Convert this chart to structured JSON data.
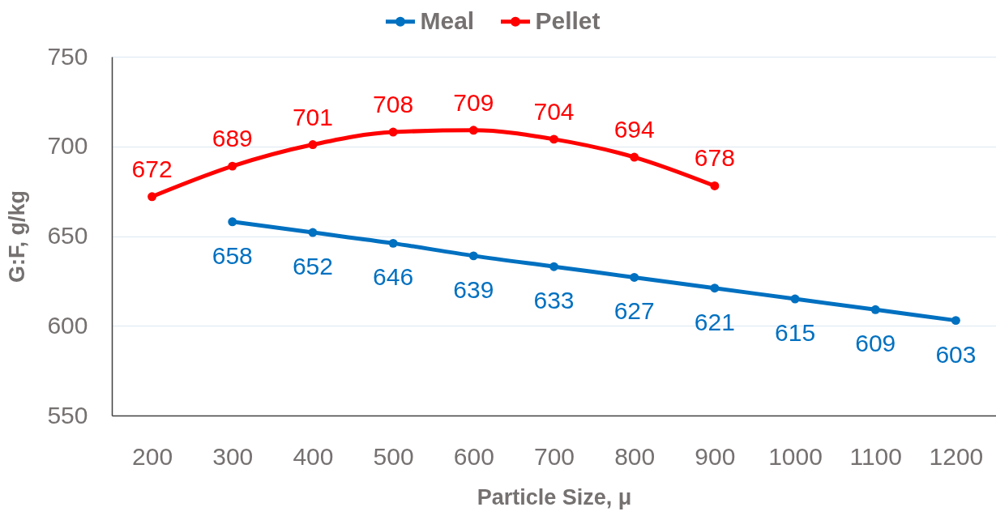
{
  "chart_data": {
    "type": "line",
    "xlabel": "Particle Size, μ",
    "ylabel": "G:F, g/kg",
    "categories": [
      "200",
      "300",
      "400",
      "500",
      "600",
      "700",
      "800",
      "900",
      "1000",
      "1100",
      "1200"
    ],
    "series": [
      {
        "name": "Meal",
        "color": "#0070c0",
        "values": [
          null,
          658,
          652,
          646,
          639,
          633,
          627,
          621,
          615,
          609,
          603
        ]
      },
      {
        "name": "Pellet",
        "color": "#ff0000",
        "values": [
          672,
          689,
          701,
          708,
          709,
          704,
          694,
          678,
          null,
          null,
          null
        ]
      }
    ],
    "ylim": [
      550,
      750
    ],
    "yticks": [
      550,
      600,
      650,
      700,
      750
    ],
    "grid": "y",
    "legend": "top",
    "marker": "circle",
    "line_style": "solid",
    "data_labels": true
  }
}
